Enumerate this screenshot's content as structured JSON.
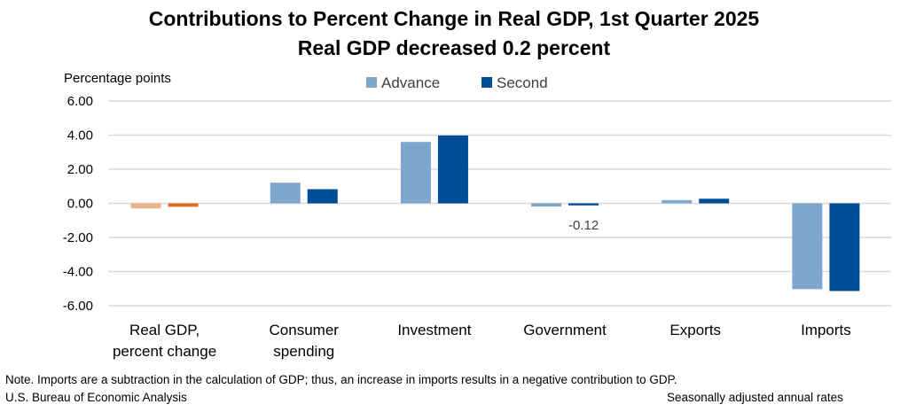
{
  "chart_data": {
    "type": "bar",
    "title": "Contributions to Percent Change in Real GDP, 1st Quarter 2025",
    "subtitle": "Real GDP decreased 0.2 percent",
    "ylabel": "Percentage points",
    "ylim": [
      -6,
      6
    ],
    "yticks": [
      "6.00",
      "4.00",
      "2.00",
      "0.00",
      "-2.00",
      "-4.00",
      "-6.00"
    ],
    "grid": true,
    "legend_position": "top",
    "categories": [
      [
        "Real GDP,",
        "percent change"
      ],
      [
        "Consumer",
        "spending"
      ],
      [
        "Investment"
      ],
      [
        "Government"
      ],
      [
        "Exports"
      ],
      [
        "Imports"
      ]
    ],
    "series": [
      {
        "name": "Advance",
        "color": "#7EA6CE",
        "values": [
          -0.3,
          1.21,
          3.6,
          -0.19,
          0.19,
          -5.03
        ]
      },
      {
        "name": "Second",
        "color": "#004C97",
        "values": [
          -0.2,
          0.83,
          3.98,
          -0.12,
          0.27,
          -5.14
        ]
      }
    ],
    "highlight_colors": {
      "Advance": "#F0B08C",
      "Second": "#E06A1E"
    },
    "annotations": [
      {
        "category_index": 3,
        "series": "Second",
        "text": "-0.12"
      }
    ]
  },
  "footer": {
    "note": "Note. Imports are a subtraction in the calculation of GDP; thus, an increase in imports results in a negative contribution to GDP.",
    "source": "U.S. Bureau of Economic Analysis",
    "rates": "Seasonally adjusted annual rates"
  }
}
